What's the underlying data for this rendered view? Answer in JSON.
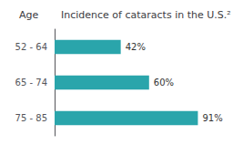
{
  "chart_data": {
    "type": "bar",
    "title": "Incidence of cataracts in the U.S.²",
    "ylabel": "Age",
    "categories": [
      "52 - 64",
      "65 - 74",
      "75 - 85"
    ],
    "values": [
      42,
      60,
      91
    ],
    "value_labels": [
      "42%",
      "60%",
      "91%"
    ],
    "data_labels": true,
    "color": "#2aa5ab",
    "orientation": "horizontal",
    "xlim": [
      0,
      100
    ],
    "tick_labels": "y",
    "grid": false
  }
}
